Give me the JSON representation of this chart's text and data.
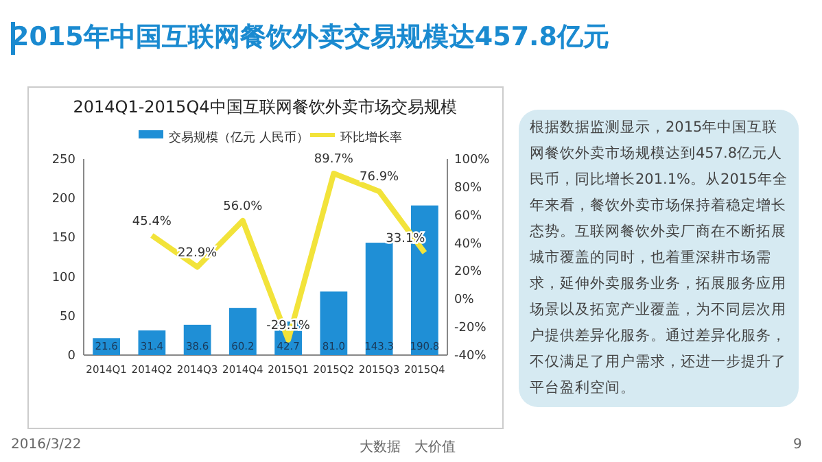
{
  "chart_data": {
    "type": "bar",
    "title": "2015年中国互联网餐饮外卖交易规模达457.8亿元",
    "subtitle": "2014Q1-2015Q4中国互联网餐饮外卖市场交易规模",
    "categories": [
      "2014Q1",
      "2014Q2",
      "2014Q3",
      "2014Q4",
      "2015Q1",
      "2015Q2",
      "2015Q3",
      "2015Q4"
    ],
    "series": [
      {
        "name": "交易规模（亿元 人民币）",
        "color": "#1f8fd6",
        "values": [
          21.6,
          31.4,
          38.6,
          60.2,
          42.7,
          81.0,
          143.3,
          190.8
        ],
        "value_labels": [
          "21.6",
          "31.4",
          "38.6",
          "60.2",
          "42.7",
          "81.0",
          "143.3",
          "190.8"
        ]
      },
      {
        "name": "环比增长率",
        "type": "line",
        "axis": "y2",
        "color": "#f2e33a",
        "values": [
          null,
          45.4,
          22.9,
          56.0,
          -29.1,
          89.7,
          76.9,
          33.1
        ],
        "value_labels": [
          null,
          "45.4%",
          "22.9%",
          "56.0%",
          "-29.1%",
          "89.7%",
          "76.9%",
          "33.1%"
        ]
      }
    ],
    "ylim": [
      0,
      250
    ],
    "yticks": [
      0,
      50,
      100,
      150,
      200,
      250
    ],
    "y2lim": [
      -40,
      100
    ],
    "y2ticks": [
      {
        "value": -40,
        "label": "-40%"
      },
      {
        "value": -20,
        "label": "-20%"
      },
      {
        "value": 0,
        "label": "0%"
      },
      {
        "value": 20,
        "label": "20%"
      },
      {
        "value": 40,
        "label": "40%"
      },
      {
        "value": 60,
        "label": "60%"
      },
      {
        "value": 80,
        "label": "80%"
      },
      {
        "value": 100,
        "label": "100%"
      }
    ],
    "legend": "top",
    "annotations": [
      "根据数据监测显示，2015年中国互联网餐饮外卖市场规模达到457.8亿元人民币，同比增长201.1%。从2015年全年来看，餐饮外卖市场保持着稳定增长态势。互联网餐饮外卖厂商在不断拓展城市覆盖的同时，也着重深耕市场需求，延伸外卖服务业务，拓展服务应用场景以及拓宽产业覆盖，为不同层次用户提供差异化服务。通过差异化服务，不仅满足了用户需求，还进一步提升了平台盈利空间。",
      "2016/3/22",
      "大数据　大价值",
      "9"
    ]
  }
}
